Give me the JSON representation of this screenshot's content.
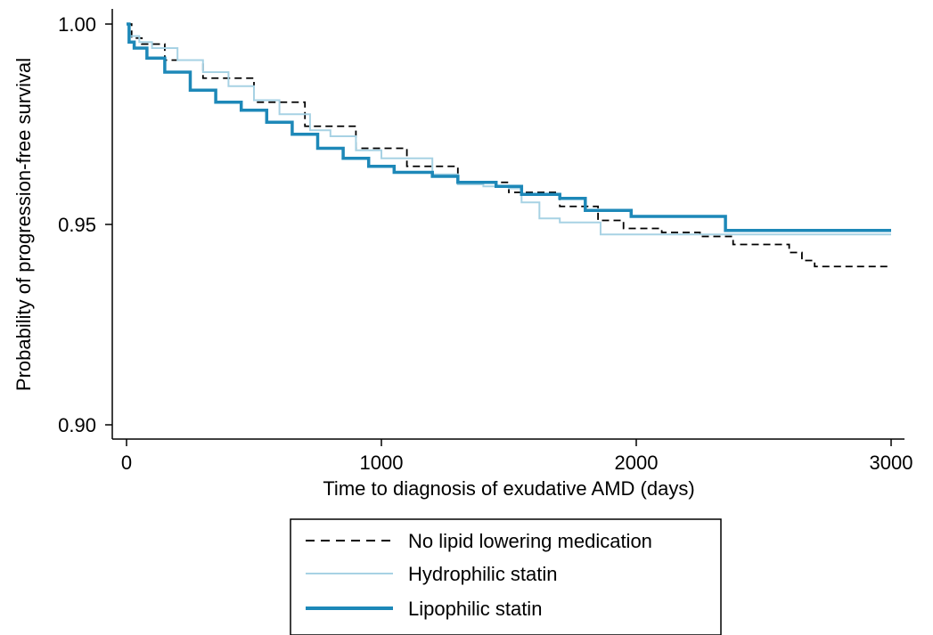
{
  "chart_data": {
    "type": "line",
    "title": "",
    "xlabel": "Time to diagnosis of exudative AMD (days)",
    "ylabel": "Probability of progression-free survival",
    "xlim": [
      0,
      3000
    ],
    "ylim": [
      0.898,
      1.003
    ],
    "xticks": [
      0,
      1000,
      2000,
      3000
    ],
    "xtick_labels": [
      "0",
      "1000",
      "2000",
      "3000"
    ],
    "yticks": [
      0.9,
      0.95,
      1.0
    ],
    "ytick_labels": [
      "0.90",
      "0.95",
      "1.00"
    ],
    "grid": false,
    "legend_position": "bottom",
    "series": [
      {
        "name": "No lipid lowering medication",
        "color": "#000000",
        "style": "dashed",
        "step": true,
        "x": [
          0,
          20,
          60,
          150,
          300,
          500,
          700,
          900,
          1100,
          1300,
          1500,
          1700,
          1850,
          1950,
          2100,
          2250,
          2380,
          2600,
          2650,
          2700,
          3000
        ],
        "y": [
          1.0,
          0.9965,
          0.995,
          0.991,
          0.9865,
          0.9805,
          0.9745,
          0.969,
          0.9645,
          0.9605,
          0.958,
          0.9545,
          0.951,
          0.949,
          0.948,
          0.947,
          0.945,
          0.943,
          0.941,
          0.9395,
          0.9395
        ]
      },
      {
        "name": "Hydrophilic statin",
        "color": "#a7d2e4",
        "style": "solid",
        "step": true,
        "x": [
          0,
          10,
          50,
          100,
          200,
          300,
          400,
          500,
          600,
          720,
          800,
          900,
          1000,
          1200,
          1300,
          1400,
          1500,
          1550,
          1620,
          1700,
          1860,
          1900,
          3000
        ],
        "y": [
          1.0,
          0.997,
          0.9955,
          0.994,
          0.991,
          0.988,
          0.9845,
          0.981,
          0.9775,
          0.9735,
          0.972,
          0.9685,
          0.9665,
          0.9625,
          0.96,
          0.9595,
          0.959,
          0.9555,
          0.9515,
          0.9505,
          0.9475,
          0.9475,
          0.9475
        ]
      },
      {
        "name": "Lipophilic statin",
        "color": "#1d88b8",
        "style": "solid",
        "step": true,
        "x": [
          0,
          10,
          30,
          80,
          150,
          250,
          350,
          450,
          550,
          650,
          750,
          850,
          950,
          1050,
          1200,
          1300,
          1450,
          1550,
          1700,
          1800,
          1980,
          2350,
          3000
        ],
        "y": [
          1.0,
          0.9955,
          0.994,
          0.9915,
          0.988,
          0.9835,
          0.9805,
          0.9785,
          0.9755,
          0.9725,
          0.969,
          0.9665,
          0.9645,
          0.963,
          0.962,
          0.9605,
          0.9595,
          0.9575,
          0.9565,
          0.9535,
          0.952,
          0.9485,
          0.9485
        ]
      }
    ]
  }
}
